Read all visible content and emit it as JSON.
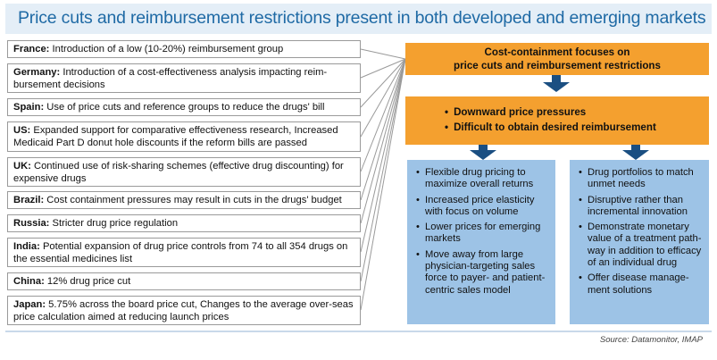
{
  "title": "Price cuts and reimbursement restrictions present in both developed and emerging markets",
  "countries": [
    {
      "name": "France:",
      "text": " Introduction of a low (10-20%) reimbursement group"
    },
    {
      "name": "Germany:",
      "text": " Introduction of a cost-effectiveness analysis impacting reim-bursement decisions"
    },
    {
      "name": "Spain:",
      "text": " Use of price cuts and reference groups to reduce the drugs' bill"
    },
    {
      "name": "US:",
      "text": " Expanded support for comparative effectiveness research, Increased Medicaid Part D donut hole discounts if the reform bills are passed"
    },
    {
      "name": "UK:",
      "text": " Continued use of risk-sharing schemes (effective drug discounting) for expensive drugs"
    },
    {
      "name": "Brazil:",
      "text": " Cost containment pressures may result in cuts in the drugs' budget"
    },
    {
      "name": "Russia:",
      "text": " Stricter drug price regulation"
    },
    {
      "name": "India:",
      "text": " Potential expansion of drug price controls from 74 to all 354 drugs on the essential medicines list"
    },
    {
      "name": "China:",
      "text": " 12% drug price cut"
    },
    {
      "name": "Japan:",
      "text": " 5.75% across the board price cut, Changes to the average over-seas price calculation aimed at reducing launch prices"
    }
  ],
  "top_box": {
    "line1": "Cost-containment focuses on",
    "line2": "price cuts and reimbursement restrictions"
  },
  "mid_box": {
    "bullets": [
      "Downward price pressures",
      "Difficult to obtain desired reimbursement"
    ]
  },
  "left_blue": {
    "bullets": [
      "Flexible drug pricing to maximize overall returns",
      "Increased price elasticity with focus on volume",
      "Lower prices for emerging markets",
      "Move away from large physician-targeting sales force to payer- and patient-centric sales model"
    ]
  },
  "right_blue": {
    "bullets": [
      "Drug portfolios to match unmet needs",
      "Disruptive rather than incremental innovation",
      "Demonstrate monetary value of a treatment path-way in addition to efficacy of an individual drug",
      "Offer disease manage-ment solutions"
    ]
  },
  "source": "Source: Datamonitor, IMAP",
  "colors": {
    "orange": "#f4a02f",
    "blue": "#9dc3e6",
    "arrow": "#1b4f82",
    "title": "#1f6aa5"
  }
}
